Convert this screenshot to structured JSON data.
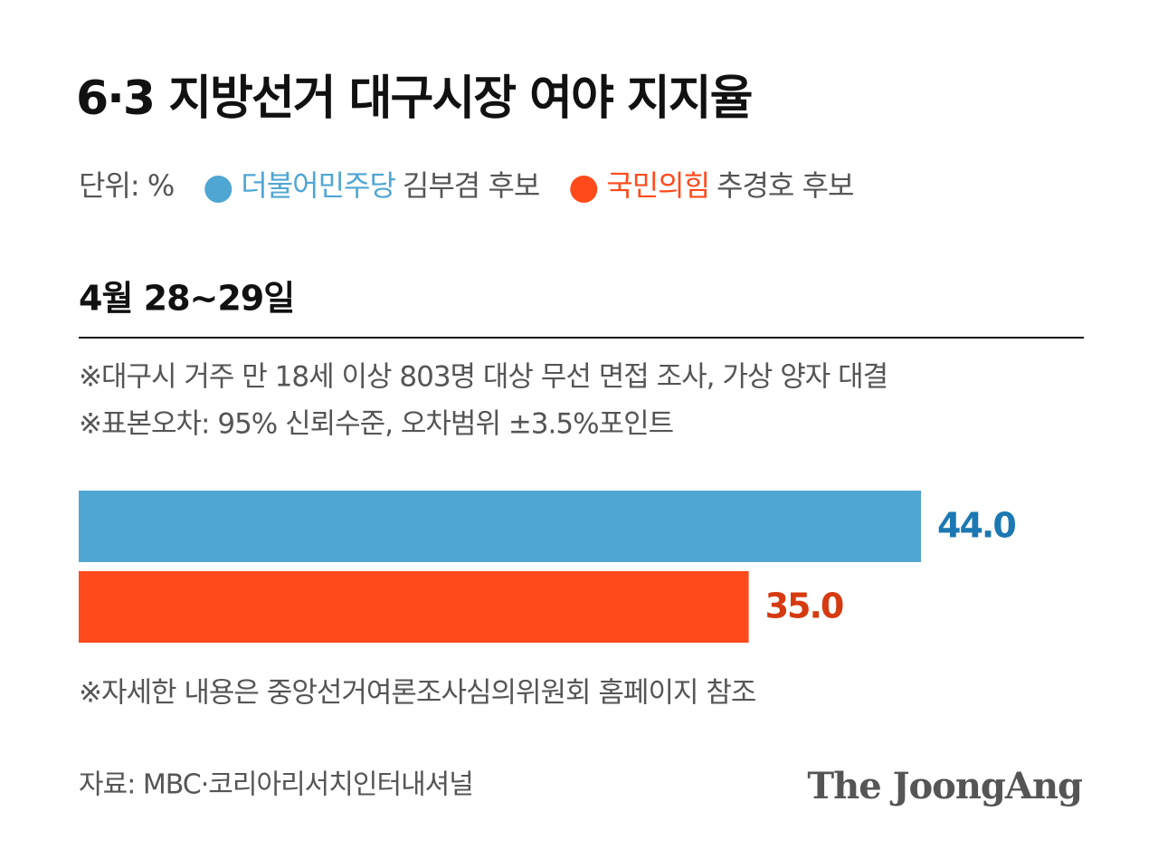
{
  "chart_data": {
    "type": "bar",
    "orientation": "horizontal",
    "title": "6·3 지방선거 대구시장 여야 지지율",
    "unit_label": "단위: %",
    "date_label": "4월 28~29일",
    "notes": [
      "※대구시 거주 만 18세 이상 803명 대상 무선 면접 조사, 가상 양자 대결",
      "※표본오차: 95% 신뢰수준, 오차범위 ±3.5%포인트"
    ],
    "footnote": "※자세한 내용은 중앙선거여론조사심의위원회 홈페이지 참조",
    "source": "자료: MBC·코리아리서치인터내셔널",
    "brand": "The JoongAng",
    "xlim": [
      0,
      44
    ],
    "series": [
      {
        "name": "더불어민주당",
        "candidate": "김부겸 후보",
        "color": "#4fa6d3",
        "label_color": "#1b78b2",
        "values": [
          44
        ],
        "value_labels": [
          "44.0"
        ]
      },
      {
        "name": "국민의힘",
        "candidate": "추경호 후보",
        "color": "#ff4a1c",
        "label_color": "#d63a10",
        "values": [
          35
        ],
        "value_labels": [
          "35.0"
        ]
      }
    ]
  }
}
